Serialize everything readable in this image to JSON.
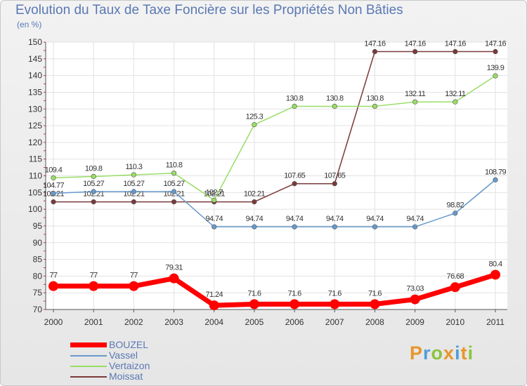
{
  "header": {
    "title": "Evolution du Taux de Taxe Foncière sur les Propriétés Non Bâties",
    "subtitle": "(en %)"
  },
  "brand": {
    "text": "Proxiti",
    "colors": [
      "#e8962a",
      "#4f9fd6",
      "#8cc43e",
      "#e8962a",
      "#4f9fd6",
      "#e8962a",
      "#8cc43e"
    ]
  },
  "chart_data": {
    "type": "line",
    "title": "Evolution du Taux de Taxe Foncière sur les Propriétés Non Bâties",
    "ylabel": "(en %)",
    "xlabel": "",
    "ylim": [
      70,
      150
    ],
    "y_ticks": [
      70,
      75,
      80,
      85,
      90,
      95,
      100,
      105,
      110,
      115,
      120,
      125,
      130,
      135,
      140,
      145,
      150
    ],
    "grid": true,
    "legend_position": "bottom-left",
    "categories": [
      "2000",
      "2001",
      "2002",
      "2003",
      "2004",
      "2005",
      "2006",
      "2007",
      "2008",
      "2009",
      "2010",
      "2011"
    ],
    "series": [
      {
        "name": "BOUZEL",
        "color": "#ff0000",
        "emphasis": "thick",
        "values": [
          77,
          77,
          77,
          79.31,
          71.24,
          71.6,
          71.6,
          71.6,
          71.6,
          73.03,
          76.68,
          80.4
        ],
        "labels": [
          "77",
          "77",
          "77",
          "79.31",
          "71.24",
          "71.6",
          "71.6",
          "71.6",
          "71.6",
          "73.03",
          "76.68",
          "80.4"
        ]
      },
      {
        "name": "Vassel",
        "color": "#6699cc",
        "emphasis": "thin",
        "values": [
          104.77,
          105.27,
          105.27,
          105.27,
          94.74,
          94.74,
          94.74,
          94.74,
          94.74,
          94.74,
          98.82,
          108.79
        ],
        "labels": [
          "104.77",
          "105.27",
          "105.27",
          "105.27",
          "94.74",
          "94.74",
          "94.74",
          "94.74",
          "94.74",
          "94.74",
          "98.82",
          "108.79"
        ]
      },
      {
        "name": "Vertaizon",
        "color": "#99dd66",
        "emphasis": "thin",
        "values": [
          109.4,
          109.8,
          110.3,
          110.8,
          102.7,
          125.3,
          130.8,
          130.8,
          130.8,
          132.11,
          132.11,
          139.9
        ],
        "labels": [
          "109.4",
          "109.8",
          "110.3",
          "110.8",
          "102.7",
          "125.3",
          "130.8",
          "130.8",
          "130.8",
          "132.11",
          "132.11",
          "139.9"
        ]
      },
      {
        "name": "Moissat",
        "color": "#7a3a3a",
        "emphasis": "thin",
        "values": [
          102.21,
          102.21,
          102.21,
          102.21,
          102.21,
          102.21,
          107.65,
          107.65,
          147.16,
          147.16,
          147.16,
          147.16
        ],
        "labels": [
          "102.21",
          "102.21",
          "102.21",
          "102.21",
          "102.21",
          "102.21",
          "107.65",
          "107.65",
          "147.16",
          "147.16",
          "147.16",
          "147.16"
        ]
      }
    ]
  }
}
